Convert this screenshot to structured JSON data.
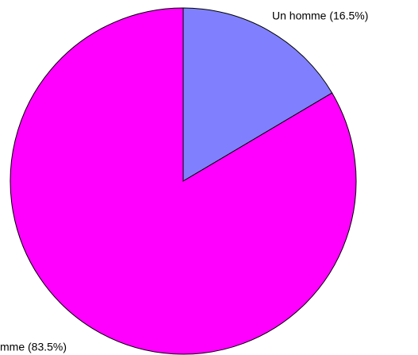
{
  "chart_data": {
    "type": "pie",
    "values": [
      16.5,
      83.5
    ],
    "value_labels": [
      "Un homme (16.5%)",
      "mme (83.5%)"
    ],
    "colors": [
      "#8080ff",
      "#ff00ff"
    ]
  }
}
